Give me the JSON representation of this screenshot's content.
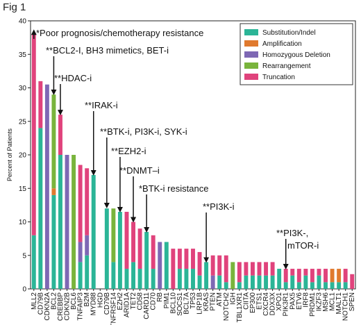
{
  "figure_label": "Fig 1",
  "chart_data": {
    "type": "bar",
    "stacked": true,
    "ylabel": "Percent of Patients",
    "xlabel": "",
    "ylim": [
      0,
      40
    ],
    "yticks": [
      0,
      5,
      10,
      15,
      20,
      25,
      30,
      35,
      40
    ],
    "grid": false,
    "legend_position": "top-right",
    "colors": {
      "Substitution/Indel": "#2bb597",
      "Amplification": "#e07a2e",
      "Homozygous Deletion": "#7e68b4",
      "Rearrangement": "#79b43c",
      "Truncation": "#e0437c"
    },
    "series_names": [
      "Substitution/Indel",
      "Amplification",
      "Homozygous Deletion",
      "Rearrangement",
      "Truncation"
    ],
    "bars": [
      {
        "gene": "MLL2",
        "values": [
          8,
          0,
          0,
          0,
          30
        ]
      },
      {
        "gene": "CD79B",
        "values": [
          24,
          0,
          0,
          0,
          7
        ]
      },
      {
        "gene": "CDKN2A",
        "values": [
          0,
          0,
          30.5,
          0,
          0
        ]
      },
      {
        "gene": "BCL2",
        "values": [
          14,
          1,
          0,
          14,
          0
        ]
      },
      {
        "gene": "CREBBP",
        "values": [
          20,
          0,
          0,
          0,
          6
        ]
      },
      {
        "gene": "CDKN2B",
        "values": [
          0,
          0,
          20,
          0,
          0
        ]
      },
      {
        "gene": "BCL6",
        "values": [
          0,
          0,
          0,
          20,
          0
        ]
      },
      {
        "gene": "TNFAIP3",
        "values": [
          4,
          0,
          3,
          0,
          11.5
        ]
      },
      {
        "gene": "B2M",
        "values": [
          5,
          0,
          3,
          0,
          10
        ]
      },
      {
        "gene": "MYD88",
        "values": [
          17,
          0,
          0,
          0,
          0
        ]
      },
      {
        "gene": "HGD",
        "values": [
          0,
          0,
          0,
          0,
          0
        ]
      },
      {
        "gene": "CD79B",
        "values": [
          12,
          0,
          0,
          0,
          0
        ]
      },
      {
        "gene": "TNFRSF14",
        "values": [
          4,
          0,
          0,
          8,
          0
        ]
      },
      {
        "gene": "EZH2",
        "values": [
          11.5,
          0,
          0,
          0,
          0
        ]
      },
      {
        "gene": "ARID1A",
        "values": [
          3,
          0,
          0,
          0,
          8.5
        ]
      },
      {
        "gene": "TET2",
        "values": [
          4,
          0,
          0,
          0,
          6
        ]
      },
      {
        "gene": "CD58",
        "values": [
          3,
          0,
          0,
          0,
          6
        ]
      },
      {
        "gene": "CARD11",
        "values": [
          8.5,
          0,
          0,
          0,
          0
        ]
      },
      {
        "gene": "CD70",
        "values": [
          3,
          0,
          0,
          0,
          5
        ]
      },
      {
        "gene": "RB",
        "values": [
          0,
          0,
          7,
          0,
          0
        ]
      },
      {
        "gene": "PIM1",
        "values": [
          7,
          0,
          0,
          0,
          0
        ]
      },
      {
        "gene": "BCL10",
        "values": [
          0,
          0,
          0,
          0,
          6
        ]
      },
      {
        "gene": "SOCS1",
        "values": [
          3,
          0,
          0,
          0,
          3
        ]
      },
      {
        "gene": "BCL7A",
        "values": [
          3,
          0,
          0,
          0,
          3
        ]
      },
      {
        "gene": "TP53",
        "values": [
          3,
          0,
          0,
          0,
          3
        ]
      },
      {
        "gene": "LRP1B",
        "values": [
          2,
          0,
          0,
          0,
          3.5
        ]
      },
      {
        "gene": "KRAS",
        "values": [
          4,
          0,
          0,
          0,
          0
        ]
      },
      {
        "gene": "PTEN",
        "values": [
          0,
          0,
          2,
          0,
          3
        ]
      },
      {
        "gene": "ATM",
        "values": [
          2,
          0,
          0,
          0,
          3
        ]
      },
      {
        "gene": "NOTCH2",
        "values": [
          1,
          0,
          0,
          0,
          4
        ]
      },
      {
        "gene": "IGH",
        "values": [
          0,
          0,
          0,
          4,
          0
        ]
      },
      {
        "gene": "TBL1XR1",
        "values": [
          1,
          0,
          0,
          0,
          3
        ]
      },
      {
        "gene": "CIITA",
        "values": [
          2,
          0,
          0,
          0,
          2
        ]
      },
      {
        "gene": "EP300",
        "values": [
          2,
          0,
          0,
          0,
          2
        ]
      },
      {
        "gene": "ETS1",
        "values": [
          2,
          0,
          0,
          0,
          2
        ]
      },
      {
        "gene": "CXCR4",
        "values": [
          2,
          0,
          0,
          0,
          2
        ]
      },
      {
        "gene": "DDX3X",
        "values": [
          2,
          0,
          0,
          0,
          2
        ]
      },
      {
        "gene": "XPO1",
        "values": [
          3,
          0,
          0,
          0,
          0
        ]
      },
      {
        "gene": "PIK3R1",
        "values": [
          1,
          0,
          0,
          0,
          2
        ]
      },
      {
        "gene": "PAX5",
        "values": [
          2,
          0,
          0,
          0,
          1
        ]
      },
      {
        "gene": "ETV6",
        "values": [
          1,
          0,
          0,
          0,
          2
        ]
      },
      {
        "gene": "IRF8",
        "values": [
          2,
          0,
          0,
          0,
          1
        ]
      },
      {
        "gene": "PRDM1",
        "values": [
          1,
          0,
          0,
          0,
          2
        ]
      },
      {
        "gene": "IKZF3",
        "values": [
          2,
          0,
          0,
          0,
          1
        ]
      },
      {
        "gene": "MSH6",
        "values": [
          1,
          0,
          0,
          0,
          2
        ]
      },
      {
        "gene": "MCL1",
        "values": [
          1,
          2,
          0,
          0,
          0
        ]
      },
      {
        "gene": "MALT1",
        "values": [
          1,
          2,
          0,
          0,
          0
        ]
      },
      {
        "gene": "NOTCH1",
        "values": [
          1,
          0,
          0,
          0,
          2
        ]
      },
      {
        "gene": "SPEN",
        "values": [
          0,
          0,
          0,
          0,
          2.2
        ]
      }
    ],
    "annotations": [
      {
        "text": "*Poor prognosis/chemotherapy resistance",
        "bar": 0
      },
      {
        "text": "**BCL2-I, BH3 mimetics, BET-i",
        "bar": 3
      },
      {
        "text": "**HDAC-i",
        "bar": 4
      },
      {
        "text": "**IRAK-i",
        "bar": 9
      },
      {
        "text": "**BTK-i, PI3K-i, SYK-i",
        "bar": 11
      },
      {
        "text": "**EZH2-i",
        "bar": 13
      },
      {
        "text": "**DNMT–i",
        "bar": 15
      },
      {
        "text": "*BTK-i resistance",
        "bar": 17
      },
      {
        "text": "**PI3K-i",
        "bar": 26
      },
      {
        "text": "**PI3K-,",
        "bar": 38
      },
      {
        "text": "mTOR-i",
        "bar": 38
      }
    ]
  }
}
